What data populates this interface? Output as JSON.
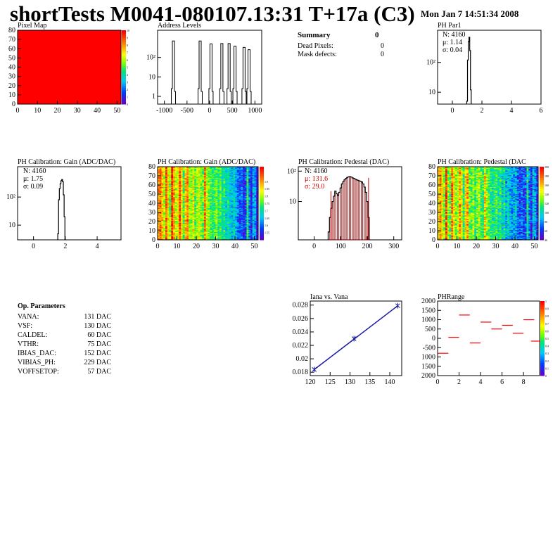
{
  "header": {
    "title": "shortTests M0041-080107.13:31 T+17a (C3)",
    "datestamp": "Mon Jan  7 14:51:34 2008"
  },
  "colors": {
    "hist_line": "#000000",
    "ped_fill": "#8b0000",
    "stat_red": "#cc0000",
    "fit_blue": "#1a1aa0",
    "range_red": "#ff0000",
    "map_red": "#ff0000"
  },
  "summary": {
    "title": "Summary",
    "value": "0",
    "rows": [
      {
        "label": "Dead Pixels:",
        "value": "0"
      },
      {
        "label": "Mask defects:",
        "value": "0"
      }
    ]
  },
  "op_params": {
    "title": "Op. Parameters",
    "rows": [
      {
        "label": "VANA:",
        "value": "131 DAC"
      },
      {
        "label": "VSF:",
        "value": "130 DAC"
      },
      {
        "label": "CALDEL:",
        "value": "60 DAC"
      },
      {
        "label": "VTHR:",
        "value": "75 DAC"
      },
      {
        "label": "IBIAS_DAC:",
        "value": "152 DAC"
      },
      {
        "label": "VIBIAS_PH:",
        "value": "229 DAC"
      },
      {
        "label": "VOFFSETOP:",
        "value": "57 DAC"
      }
    ]
  },
  "chart_data": [
    {
      "id": "pixel-map",
      "type": "heatmap",
      "title": "Pixel Map",
      "xlim": [
        0,
        52
      ],
      "ylim": [
        0,
        80
      ],
      "xticks": [
        "0",
        "10",
        "20",
        "30",
        "40",
        "50"
      ],
      "yticks": [
        "0",
        "10",
        "20",
        "30",
        "40",
        "50",
        "60",
        "70",
        "80"
      ],
      "uniform_value": 10,
      "colorbar": {
        "min": 0,
        "max": 10,
        "ticks": [
          "0",
          "1",
          "2",
          "3",
          "4",
          "5",
          "6",
          "7",
          "8",
          "9",
          "10"
        ]
      }
    },
    {
      "id": "address-levels",
      "type": "bar",
      "title": "Address Levels",
      "xlim": [
        -1150,
        1150
      ],
      "log_y": true,
      "xticks": [
        "-1000",
        "-500",
        "0",
        "500",
        "1000"
      ],
      "yticks": [
        "1",
        "10",
        "10²"
      ],
      "peaks": [
        {
          "x": -800,
          "y": 700
        },
        {
          "x": -210,
          "y": 700
        },
        {
          "x": 30,
          "y": 500
        },
        {
          "x": 270,
          "y": 520
        },
        {
          "x": 430,
          "y": 520
        },
        {
          "x": 560,
          "y": 380
        },
        {
          "x": 760,
          "y": 330
        },
        {
          "x": 870,
          "y": 250
        }
      ]
    },
    {
      "id": "ph-par1",
      "type": "bar",
      "title": "PH Par1",
      "xlim": [
        -1,
        6
      ],
      "log_y": true,
      "xticks": [
        "0",
        "2",
        "4",
        "6"
      ],
      "yticks": [
        "10",
        "10²"
      ],
      "stats": {
        "n": "N: 4160",
        "mean": "μ: 1.14",
        "sigma": "σ: 0.04"
      },
      "bins": [
        [
          1.0,
          5
        ],
        [
          1.05,
          120
        ],
        [
          1.1,
          500
        ],
        [
          1.15,
          700
        ],
        [
          1.2,
          250
        ],
        [
          1.25,
          12
        ]
      ]
    },
    {
      "id": "gain-1d",
      "type": "bar",
      "title": "PH Calibration: Gain (ADC/DAC)",
      "xlim": [
        -1,
        5.5
      ],
      "log_y": true,
      "xticks": [
        "0",
        "2",
        "4"
      ],
      "yticks": [
        "10",
        "10²"
      ],
      "stats": {
        "n": "N: 4160",
        "mean": "μ: 1.75",
        "sigma": "σ: 0.09"
      },
      "bins": [
        [
          1.55,
          5
        ],
        [
          1.6,
          80
        ],
        [
          1.65,
          200
        ],
        [
          1.7,
          300
        ],
        [
          1.75,
          380
        ],
        [
          1.8,
          420
        ],
        [
          1.85,
          350
        ],
        [
          1.9,
          120
        ],
        [
          1.95,
          20
        ]
      ]
    },
    {
      "id": "gain-map",
      "type": "heatmap",
      "title": "PH Calibration: Gain (ADC/DAC)",
      "xlim": [
        0,
        52
      ],
      "ylim": [
        0,
        80
      ],
      "xticks": [
        "0",
        "10",
        "20",
        "30",
        "40",
        "50"
      ],
      "yticks": [
        "0",
        "10",
        "20",
        "30",
        "40",
        "50",
        "60",
        "70",
        "80"
      ],
      "colorbar": {
        "min": 1.5,
        "max": 2.0,
        "ticks": [
          "1.55",
          "1.6",
          "1.65",
          "1.7",
          "1.75",
          "1.8",
          "1.85",
          "1.9"
        ]
      },
      "column_profile": [
        0.8,
        0.85,
        0.75,
        0.6,
        0.9,
        0.7,
        0.55,
        0.95,
        0.8,
        0.6,
        0.65,
        0.9,
        0.7,
        0.5,
        0.75,
        0.85,
        0.6,
        0.55,
        0.7,
        0.5,
        0.6,
        0.65,
        0.55,
        0.5,
        0.85,
        0.6,
        0.55,
        0.5,
        0.45,
        0.5,
        0.55,
        0.45,
        0.5,
        0.4,
        0.45,
        0.35,
        0.4,
        0.35,
        0.3,
        0.35,
        0.3,
        0.2,
        0.15,
        0.2,
        0.1,
        0.15,
        0.45,
        0.2,
        0.1,
        0.3,
        0.25,
        0.05
      ]
    },
    {
      "id": "pedestal-1d",
      "type": "bar",
      "title": "PH Calibration: Pedestal (DAC)",
      "xlim": [
        -60,
        330
      ],
      "log_y": true,
      "xticks": [
        "0",
        "100",
        "200",
        "300"
      ],
      "yticks": [
        "10",
        "10²"
      ],
      "stats": {
        "n": "N: 4160",
        "mean": "μ: 131.6",
        "sigma": "σ: 29.0"
      },
      "bins": [
        [
          55,
          1
        ],
        [
          60,
          3
        ],
        [
          65,
          6
        ],
        [
          70,
          10
        ],
        [
          75,
          15
        ],
        [
          80,
          22
        ],
        [
          85,
          18
        ],
        [
          90,
          16
        ],
        [
          95,
          20
        ],
        [
          100,
          28
        ],
        [
          105,
          38
        ],
        [
          110,
          45
        ],
        [
          115,
          52
        ],
        [
          120,
          58
        ],
        [
          125,
          62
        ],
        [
          130,
          65
        ],
        [
          135,
          66
        ],
        [
          140,
          64
        ],
        [
          145,
          60
        ],
        [
          150,
          58
        ],
        [
          155,
          55
        ],
        [
          160,
          52
        ],
        [
          165,
          50
        ],
        [
          170,
          48
        ],
        [
          175,
          46
        ],
        [
          180,
          44
        ],
        [
          185,
          38
        ],
        [
          190,
          30
        ],
        [
          195,
          20
        ],
        [
          200,
          10
        ],
        [
          205,
          3
        ]
      ]
    },
    {
      "id": "pedestal-map",
      "type": "heatmap",
      "title": "PH Calibration: Pedestal (DAC",
      "xlim": [
        0,
        52
      ],
      "ylim": [
        0,
        80
      ],
      "xticks": [
        "0",
        "10",
        "20",
        "30",
        "40",
        "50"
      ],
      "yticks": [
        "0",
        "10",
        "20",
        "30",
        "40",
        "50",
        "60",
        "70",
        "80"
      ],
      "colorbar": {
        "min": 40,
        "max": 200,
        "ticks": [
          "40",
          "60",
          "80",
          "100",
          "120",
          "140",
          "160",
          "180",
          "200"
        ]
      },
      "column_profile": [
        0.7,
        0.8,
        0.65,
        0.55,
        0.9,
        0.6,
        0.5,
        0.85,
        0.7,
        0.55,
        0.6,
        0.8,
        0.65,
        0.45,
        0.7,
        0.8,
        0.55,
        0.5,
        0.6,
        0.45,
        0.55,
        0.6,
        0.5,
        0.45,
        0.75,
        0.55,
        0.5,
        0.45,
        0.4,
        0.45,
        0.5,
        0.4,
        0.45,
        0.35,
        0.4,
        0.3,
        0.35,
        0.3,
        0.25,
        0.3,
        0.3,
        0.2,
        0.15,
        0.2,
        0.15,
        0.15,
        0.4,
        0.2,
        0.1,
        0.3,
        0.25,
        0.1
      ]
    },
    {
      "id": "iana-vana",
      "type": "line",
      "title": "Iana vs. Vana",
      "xlim": [
        120,
        143
      ],
      "ylim": [
        0.0175,
        0.0286
      ],
      "xticks": [
        "120",
        "125",
        "130",
        "135",
        "140"
      ],
      "yticks": [
        "0.018",
        "0.02",
        "0.022",
        "0.024",
        "0.026",
        "0.028"
      ],
      "x": [
        121,
        131,
        142
      ],
      "y": [
        0.0184,
        0.023,
        0.0279
      ]
    },
    {
      "id": "ph-range",
      "type": "scatter",
      "title": "PHRange",
      "xlim": [
        0,
        9.5
      ],
      "ylim": [
        -2000,
        2000
      ],
      "xticks": [
        "0",
        "2",
        "4",
        "6",
        "8"
      ],
      "yticks": [
        "2000",
        "1500",
        "1000",
        "500",
        "0",
        "-500",
        "1000",
        "1500",
        "2000"
      ],
      "colorbar": {
        "min": 0,
        "max": 1,
        "ticks": [
          "0",
          "0.1",
          "0.2",
          "0.3",
          "0.4",
          "0.5",
          "0.6",
          "0.7",
          "0.8",
          "0.9",
          "1"
        ]
      },
      "points": [
        {
          "x": 0.5,
          "y": -800
        },
        {
          "x": 1.5,
          "y": 50
        },
        {
          "x": 2.5,
          "y": 1250
        },
        {
          "x": 3.5,
          "y": -250
        },
        {
          "x": 4.5,
          "y": 870
        },
        {
          "x": 5.5,
          "y": 500
        },
        {
          "x": 6.5,
          "y": 700
        },
        {
          "x": 7.5,
          "y": 270
        },
        {
          "x": 8.5,
          "y": 1000
        },
        {
          "x": 9.2,
          "y": -150
        }
      ]
    }
  ]
}
